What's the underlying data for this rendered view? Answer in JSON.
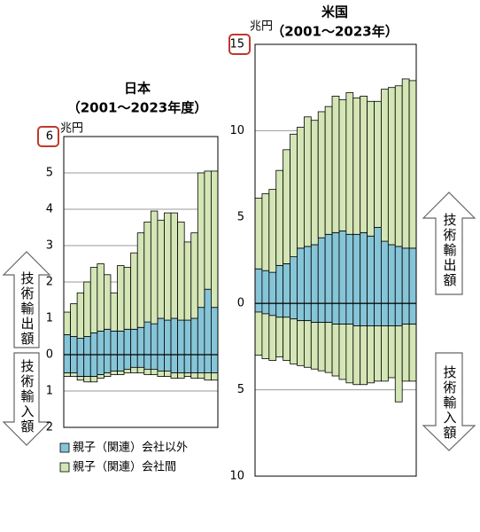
{
  "chart_data": [
    {
      "type": "bar",
      "title": "日本",
      "subtitle": "（2001～2023年度）",
      "unit": "兆円",
      "export_label": "技術輸出額",
      "import_label": "技術輸入額",
      "ylim": [
        -2,
        6
      ],
      "yticks": [
        {
          "value": -2,
          "label": "2"
        },
        {
          "value": -1,
          "label": "1"
        },
        0,
        1,
        2,
        3,
        4,
        5,
        6
      ],
      "grid": true,
      "series": [
        {
          "name": "親子（関連）会社以外",
          "color": "#86c5d8",
          "values": [
            0.55,
            0.5,
            0.45,
            0.5,
            0.6,
            0.65,
            0.7,
            0.65,
            0.65,
            0.7,
            0.7,
            0.75,
            0.9,
            0.85,
            1.0,
            0.95,
            1.0,
            0.95,
            0.95,
            1.0,
            1.3,
            1.8,
            1.3
          ],
          "import_values": [
            -0.5,
            -0.5,
            -0.6,
            -0.6,
            -0.6,
            -0.55,
            -0.5,
            -0.45,
            -0.45,
            -0.4,
            -0.35,
            -0.35,
            -0.4,
            -0.4,
            -0.45,
            -0.45,
            -0.5,
            -0.5,
            -0.5,
            -0.5,
            -0.5,
            -0.5,
            -0.5
          ]
        },
        {
          "name": "親子（関連）会社間",
          "color": "#d5e6b6",
          "values": [
            0.62,
            0.9,
            1.25,
            1.5,
            1.8,
            1.85,
            1.5,
            1.05,
            1.8,
            1.7,
            2.1,
            2.6,
            2.75,
            3.1,
            2.7,
            2.95,
            2.9,
            2.7,
            2.15,
            2.35,
            3.7,
            3.25,
            3.75
          ],
          "import_values": [
            -0.1,
            -0.1,
            -0.1,
            -0.15,
            -0.15,
            -0.1,
            -0.1,
            -0.1,
            -0.1,
            -0.1,
            -0.15,
            -0.15,
            -0.15,
            -0.15,
            -0.15,
            -0.15,
            -0.15,
            -0.15,
            -0.1,
            -0.15,
            -0.15,
            -0.2,
            -0.2
          ]
        }
      ]
    },
    {
      "type": "bar",
      "title": "米国",
      "subtitle": "（2001～2023年）",
      "unit": "兆円",
      "export_label": "技術輸出額",
      "import_label": "技術輸入額",
      "ylim": [
        -10,
        15
      ],
      "yticks": [
        {
          "value": -10,
          "label": "10"
        },
        {
          "value": -5,
          "label": "5"
        },
        0,
        5,
        10,
        15
      ],
      "grid": true,
      "series": [
        {
          "color": "#86c5d8",
          "values": [
            2.0,
            1.9,
            1.8,
            2.2,
            2.3,
            2.7,
            3.2,
            3.3,
            3.4,
            3.8,
            4.0,
            4.1,
            4.2,
            4.0,
            4.0,
            4.1,
            3.9,
            4.4,
            3.6,
            3.4,
            3.3,
            3.2,
            3.2
          ],
          "import_values": [
            -0.5,
            -0.6,
            -0.7,
            -0.8,
            -0.8,
            -0.9,
            -1.0,
            -1.0,
            -1.1,
            -1.1,
            -1.1,
            -1.2,
            -1.2,
            -1.2,
            -1.3,
            -1.3,
            -1.3,
            -1.3,
            -1.3,
            -1.3,
            -1.3,
            -1.2,
            -1.2
          ]
        },
        {
          "color": "#d5e6b6",
          "values": [
            4.1,
            4.45,
            4.8,
            5.5,
            6.6,
            7.1,
            7.0,
            7.5,
            7.2,
            7.3,
            7.4,
            7.9,
            7.6,
            8.2,
            7.9,
            7.9,
            7.8,
            7.3,
            8.8,
            9.1,
            9.3,
            9.8,
            9.7
          ],
          "import_values": [
            -2.5,
            -2.6,
            -2.6,
            -2.3,
            -2.5,
            -2.6,
            -2.6,
            -2.7,
            -2.7,
            -2.8,
            -2.9,
            -3.0,
            -3.2,
            -3.4,
            -3.4,
            -3.4,
            -3.3,
            -3.2,
            -3.2,
            -3.0,
            -4.4,
            -3.3,
            -3.3
          ]
        }
      ]
    }
  ]
}
